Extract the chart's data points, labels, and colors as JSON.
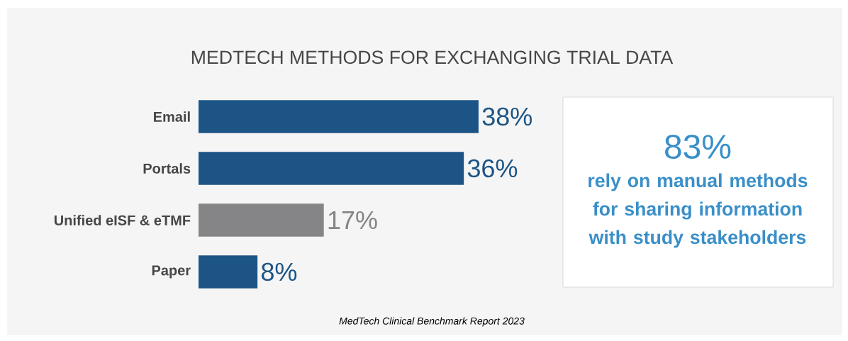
{
  "chart_data": {
    "type": "bar",
    "orientation": "horizontal",
    "title": "MEDTECH METHODS FOR EXCHANGING TRIAL DATA",
    "categories": [
      "Email",
      "Portals",
      "Unified eISF & eTMF",
      "Paper"
    ],
    "values": [
      38,
      36,
      17,
      8
    ],
    "value_labels": [
      "38%",
      "36%",
      "17%",
      "8%"
    ],
    "colors": [
      "#1c5585",
      "#1c5585",
      "#858587",
      "#1c5585"
    ],
    "annotations": [
      "83%",
      "rely on manual methods for sharing information with study stakeholders",
      "MedTech Clinical Benchmark Report 2023"
    ]
  }
}
